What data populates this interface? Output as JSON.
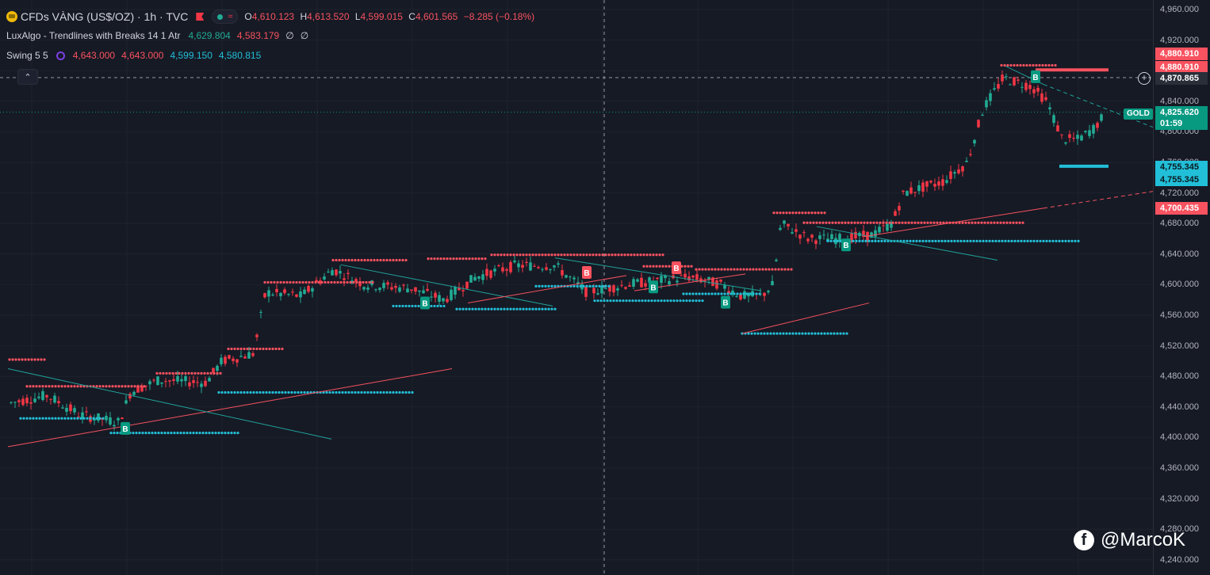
{
  "legend": {
    "symbol_title": "CFDs VÀNG (US$/OZ) · 1h · TVC",
    "ohlc": {
      "o_label": "O",
      "o_value": "4,610.123",
      "h_label": "H",
      "h_value": "4,613.520",
      "l_label": "L",
      "l_value": "4,599.015",
      "c_label": "C",
      "c_value": "4,601.565",
      "change": "−8.285 (−0.18%)"
    },
    "indicator1": {
      "name": "LuxAlgo - Trendlines with Breaks 14 1 Atr",
      "v1": "4,629.804",
      "v2": "4,583.179",
      "v3": "∅",
      "v4": "∅"
    },
    "indicator2": {
      "name": "Swing 5 5",
      "v1": "4,643.000",
      "v2": "4,643.000",
      "v3": "4,599.150",
      "v4": "4,580.815"
    },
    "collapse_label": "⌃"
  },
  "price_axis": {
    "ticks": [
      "4,960.000",
      "4,920.000",
      "4,880.000",
      "4,840.000",
      "4,800.000",
      "4,760.000",
      "4,720.000",
      "4,680.000",
      "4,640.000",
      "4,600.000",
      "4,560.000",
      "4,520.000",
      "4,480.000",
      "4,440.000",
      "4,400.000",
      "4,360.000",
      "4,320.000",
      "4,280.000",
      "4,240.000"
    ],
    "tags": {
      "high1": "4,880.910",
      "high2": "4,880.910",
      "crosshair": "4,870.865",
      "current_price": "4,825.620",
      "countdown": "01:59",
      "low1": "4,755.345",
      "low2": "4,755.345",
      "trend": "4,700.435"
    },
    "gold_label": "GOLD"
  },
  "colors": {
    "up": "#22ab94",
    "down": "#f23645",
    "bg": "#161a25",
    "support": "#22bfd8",
    "resistance": "#f7525f",
    "trend_teal": "#1fa39a"
  },
  "signals": {
    "buy_label": "B"
  },
  "watermark": {
    "text": "@MarcoK",
    "icon": "facebook-icon"
  }
}
